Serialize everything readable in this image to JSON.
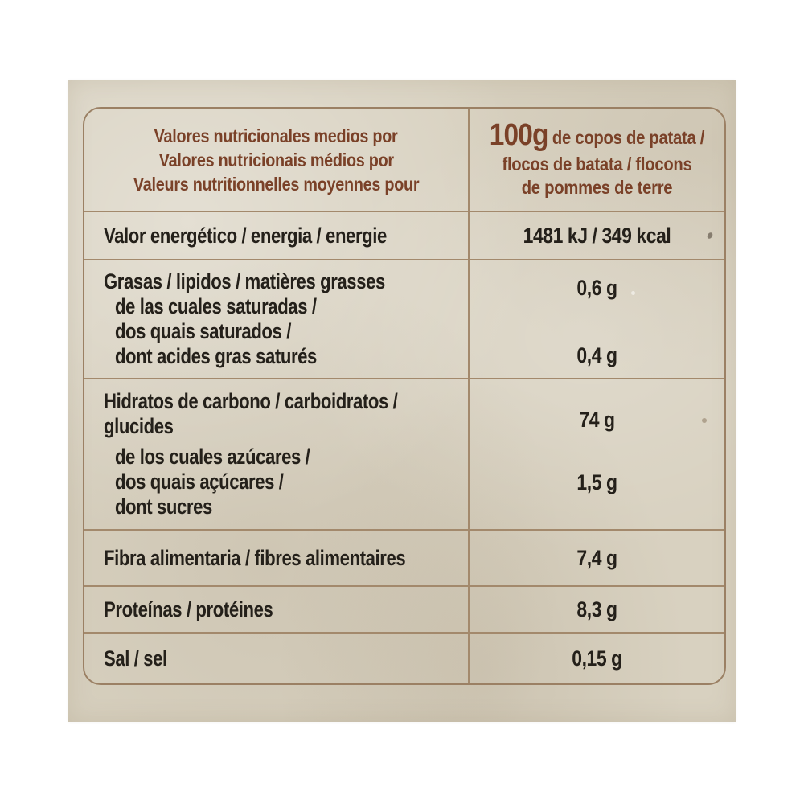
{
  "label": {
    "header": {
      "left_lines": [
        "Valores nutricionales medios por",
        "Valores nutricionais médios por",
        "Valeurs nutritionnelles moyennes pour"
      ],
      "right": {
        "amount": "100g",
        "line1_rest": " de copos de patata /",
        "line2": "flocos de batata / flocons",
        "line3": "de pommes de terre"
      }
    },
    "rows": [
      {
        "name": "energy",
        "label_lines": [
          "Valor energético / energia / energie"
        ],
        "values": [
          "1481 kJ / 349 kcal"
        ]
      },
      {
        "name": "fat",
        "label_lines": [
          "Grasas / lipidos / matières grasses",
          "de las cuales saturadas /",
          "dos quais saturados /",
          "dont acides gras saturés"
        ],
        "values": [
          "0,6 g",
          "0,4 g"
        ]
      },
      {
        "name": "carbohydrate",
        "label_lines": [
          "Hidratos de carbono / carboidratos /",
          "glucides",
          "de los cuales azúcares /",
          "dos quais açúcares /",
          "dont sucres"
        ],
        "values": [
          "74 g",
          "1,5 g"
        ]
      },
      {
        "name": "fiber",
        "label_lines": [
          "Fibra alimentaria / fibres alimentaires"
        ],
        "values": [
          "7,4 g"
        ]
      },
      {
        "name": "protein",
        "label_lines": [
          "Proteínas / protéines"
        ],
        "values": [
          "8,3 g"
        ]
      },
      {
        "name": "salt",
        "label_lines": [
          "Sal / sel"
        ],
        "values": [
          "0,15 g"
        ]
      }
    ]
  },
  "colors": {
    "paper": "#d8d1c0",
    "border": "#9b8064",
    "line": "#a3896c",
    "header_text": "#7a4128",
    "body_text": "#24201a"
  }
}
